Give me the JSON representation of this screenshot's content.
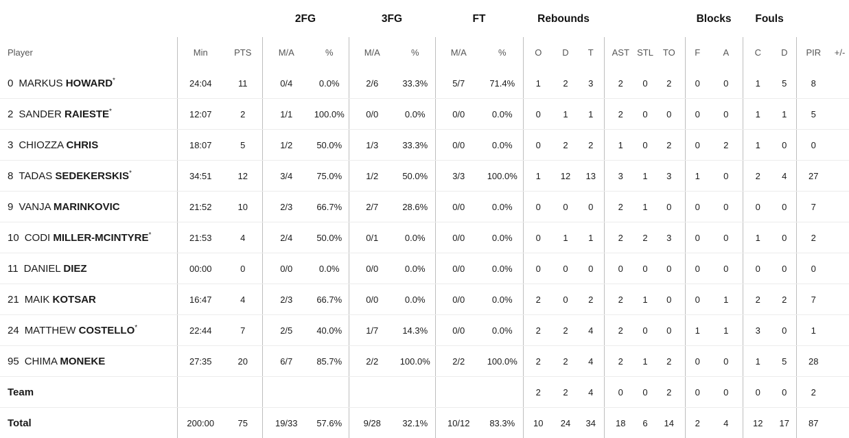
{
  "groups": [
    "2FG",
    "3FG",
    "FT",
    "Rebounds",
    "Blocks",
    "Fouls"
  ],
  "columns": [
    "Player",
    "Min",
    "PTS",
    "M/A",
    "%",
    "M/A",
    "%",
    "M/A",
    "%",
    "O",
    "D",
    "T",
    "AST",
    "STL",
    "TO",
    "F",
    "A",
    "C",
    "D",
    "PIR",
    "+/-"
  ],
  "players": [
    {
      "num": "0",
      "first": "MARKUS",
      "last": "HOWARD",
      "star": "*",
      "min": "24:04",
      "pts": "11",
      "fg2": "0/4",
      "fg2p": "0.0%",
      "fg3": "2/6",
      "fg3p": "33.3%",
      "ft": "5/7",
      "ftp": "71.4%",
      "o": "1",
      "d": "2",
      "t": "3",
      "ast": "2",
      "stl": "0",
      "to": "2",
      "bf": "0",
      "ba": "0",
      "fc": "1",
      "fd": "5",
      "pir": "8",
      "pm": ""
    },
    {
      "num": "2",
      "first": "SANDER",
      "last": "RAIESTE",
      "star": "*",
      "min": "12:07",
      "pts": "2",
      "fg2": "1/1",
      "fg2p": "100.0%",
      "fg3": "0/0",
      "fg3p": "0.0%",
      "ft": "0/0",
      "ftp": "0.0%",
      "o": "0",
      "d": "1",
      "t": "1",
      "ast": "2",
      "stl": "0",
      "to": "0",
      "bf": "0",
      "ba": "0",
      "fc": "1",
      "fd": "1",
      "pir": "5",
      "pm": ""
    },
    {
      "num": "3",
      "first": "CHIOZZA",
      "last": "CHRIS",
      "star": "",
      "min": "18:07",
      "pts": "5",
      "fg2": "1/2",
      "fg2p": "50.0%",
      "fg3": "1/3",
      "fg3p": "33.3%",
      "ft": "0/0",
      "ftp": "0.0%",
      "o": "0",
      "d": "2",
      "t": "2",
      "ast": "1",
      "stl": "0",
      "to": "2",
      "bf": "0",
      "ba": "2",
      "fc": "1",
      "fd": "0",
      "pir": "0",
      "pm": ""
    },
    {
      "num": "8",
      "first": "TADAS",
      "last": "SEDEKERSKIS",
      "star": "*",
      "min": "34:51",
      "pts": "12",
      "fg2": "3/4",
      "fg2p": "75.0%",
      "fg3": "1/2",
      "fg3p": "50.0%",
      "ft": "3/3",
      "ftp": "100.0%",
      "o": "1",
      "d": "12",
      "t": "13",
      "ast": "3",
      "stl": "1",
      "to": "3",
      "bf": "1",
      "ba": "0",
      "fc": "2",
      "fd": "4",
      "pir": "27",
      "pm": ""
    },
    {
      "num": "9",
      "first": "VANJA",
      "last": "MARINKOVIC",
      "star": "",
      "min": "21:52",
      "pts": "10",
      "fg2": "2/3",
      "fg2p": "66.7%",
      "fg3": "2/7",
      "fg3p": "28.6%",
      "ft": "0/0",
      "ftp": "0.0%",
      "o": "0",
      "d": "0",
      "t": "0",
      "ast": "2",
      "stl": "1",
      "to": "0",
      "bf": "0",
      "ba": "0",
      "fc": "0",
      "fd": "0",
      "pir": "7",
      "pm": ""
    },
    {
      "num": "10",
      "first": "CODI",
      "last": "MILLER-MCINTYRE",
      "star": "*",
      "min": "21:53",
      "pts": "4",
      "fg2": "2/4",
      "fg2p": "50.0%",
      "fg3": "0/1",
      "fg3p": "0.0%",
      "ft": "0/0",
      "ftp": "0.0%",
      "o": "0",
      "d": "1",
      "t": "1",
      "ast": "2",
      "stl": "2",
      "to": "3",
      "bf": "0",
      "ba": "0",
      "fc": "1",
      "fd": "0",
      "pir": "2",
      "pm": ""
    },
    {
      "num": "11",
      "first": "DANIEL",
      "last": "DIEZ",
      "star": "",
      "min": "00:00",
      "pts": "0",
      "fg2": "0/0",
      "fg2p": "0.0%",
      "fg3": "0/0",
      "fg3p": "0.0%",
      "ft": "0/0",
      "ftp": "0.0%",
      "o": "0",
      "d": "0",
      "t": "0",
      "ast": "0",
      "stl": "0",
      "to": "0",
      "bf": "0",
      "ba": "0",
      "fc": "0",
      "fd": "0",
      "pir": "0",
      "pm": ""
    },
    {
      "num": "21",
      "first": "MAIK",
      "last": "KOTSAR",
      "star": "",
      "min": "16:47",
      "pts": "4",
      "fg2": "2/3",
      "fg2p": "66.7%",
      "fg3": "0/0",
      "fg3p": "0.0%",
      "ft": "0/0",
      "ftp": "0.0%",
      "o": "2",
      "d": "0",
      "t": "2",
      "ast": "2",
      "stl": "1",
      "to": "0",
      "bf": "0",
      "ba": "1",
      "fc": "2",
      "fd": "2",
      "pir": "7",
      "pm": ""
    },
    {
      "num": "24",
      "first": "MATTHEW",
      "last": "COSTELLO",
      "star": "*",
      "min": "22:44",
      "pts": "7",
      "fg2": "2/5",
      "fg2p": "40.0%",
      "fg3": "1/7",
      "fg3p": "14.3%",
      "ft": "0/0",
      "ftp": "0.0%",
      "o": "2",
      "d": "2",
      "t": "4",
      "ast": "2",
      "stl": "0",
      "to": "0",
      "bf": "1",
      "ba": "1",
      "fc": "3",
      "fd": "0",
      "pir": "1",
      "pm": ""
    },
    {
      "num": "95",
      "first": "CHIMA",
      "last": "MONEKE",
      "star": "",
      "min": "27:35",
      "pts": "20",
      "fg2": "6/7",
      "fg2p": "85.7%",
      "fg3": "2/2",
      "fg3p": "100.0%",
      "ft": "2/2",
      "ftp": "100.0%",
      "o": "2",
      "d": "2",
      "t": "4",
      "ast": "2",
      "stl": "1",
      "to": "2",
      "bf": "0",
      "ba": "0",
      "fc": "1",
      "fd": "5",
      "pir": "28",
      "pm": ""
    }
  ],
  "team": {
    "label": "Team",
    "min": "",
    "pts": "",
    "fg2": "",
    "fg2p": "",
    "fg3": "",
    "fg3p": "",
    "ft": "",
    "ftp": "",
    "o": "2",
    "d": "2",
    "t": "4",
    "ast": "0",
    "stl": "0",
    "to": "2",
    "bf": "0",
    "ba": "0",
    "fc": "0",
    "fd": "0",
    "pir": "2",
    "pm": ""
  },
  "total": {
    "label": "Total",
    "min": "200:00",
    "pts": "75",
    "fg2": "19/33",
    "fg2p": "57.6%",
    "fg3": "9/28",
    "fg3p": "32.1%",
    "ft": "10/12",
    "ftp": "83.3%",
    "o": "10",
    "d": "24",
    "t": "34",
    "ast": "18",
    "stl": "6",
    "to": "14",
    "bf": "2",
    "ba": "4",
    "fc": "12",
    "fd": "17",
    "pir": "87",
    "pm": ""
  }
}
